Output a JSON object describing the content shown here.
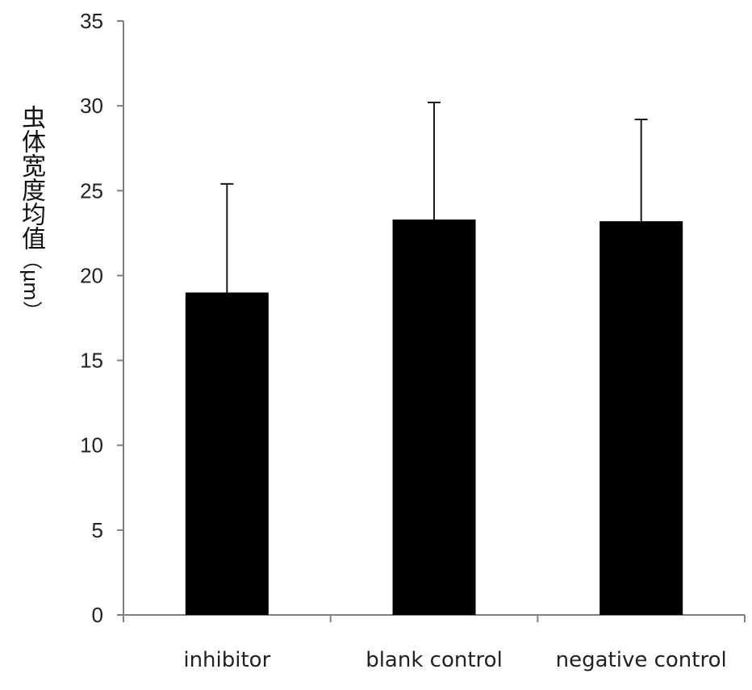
{
  "chart_data": {
    "type": "bar",
    "categories": [
      "inhibitor",
      "blank control",
      "negative control"
    ],
    "values": [
      19.0,
      23.3,
      23.2
    ],
    "error_upper": [
      25.4,
      30.2,
      29.2
    ],
    "ylabel": "虫体宽度均值",
    "ylabel_unit": "（μm）",
    "ylim": [
      0,
      35
    ],
    "yticks": [
      "0",
      "5",
      "10",
      "15",
      "20",
      "25",
      "30",
      "35"
    ],
    "grid": false,
    "legend": "none",
    "colors": {
      "bar": "#000000",
      "axis": "#808080",
      "error_bar": "#1a1a1a"
    }
  }
}
